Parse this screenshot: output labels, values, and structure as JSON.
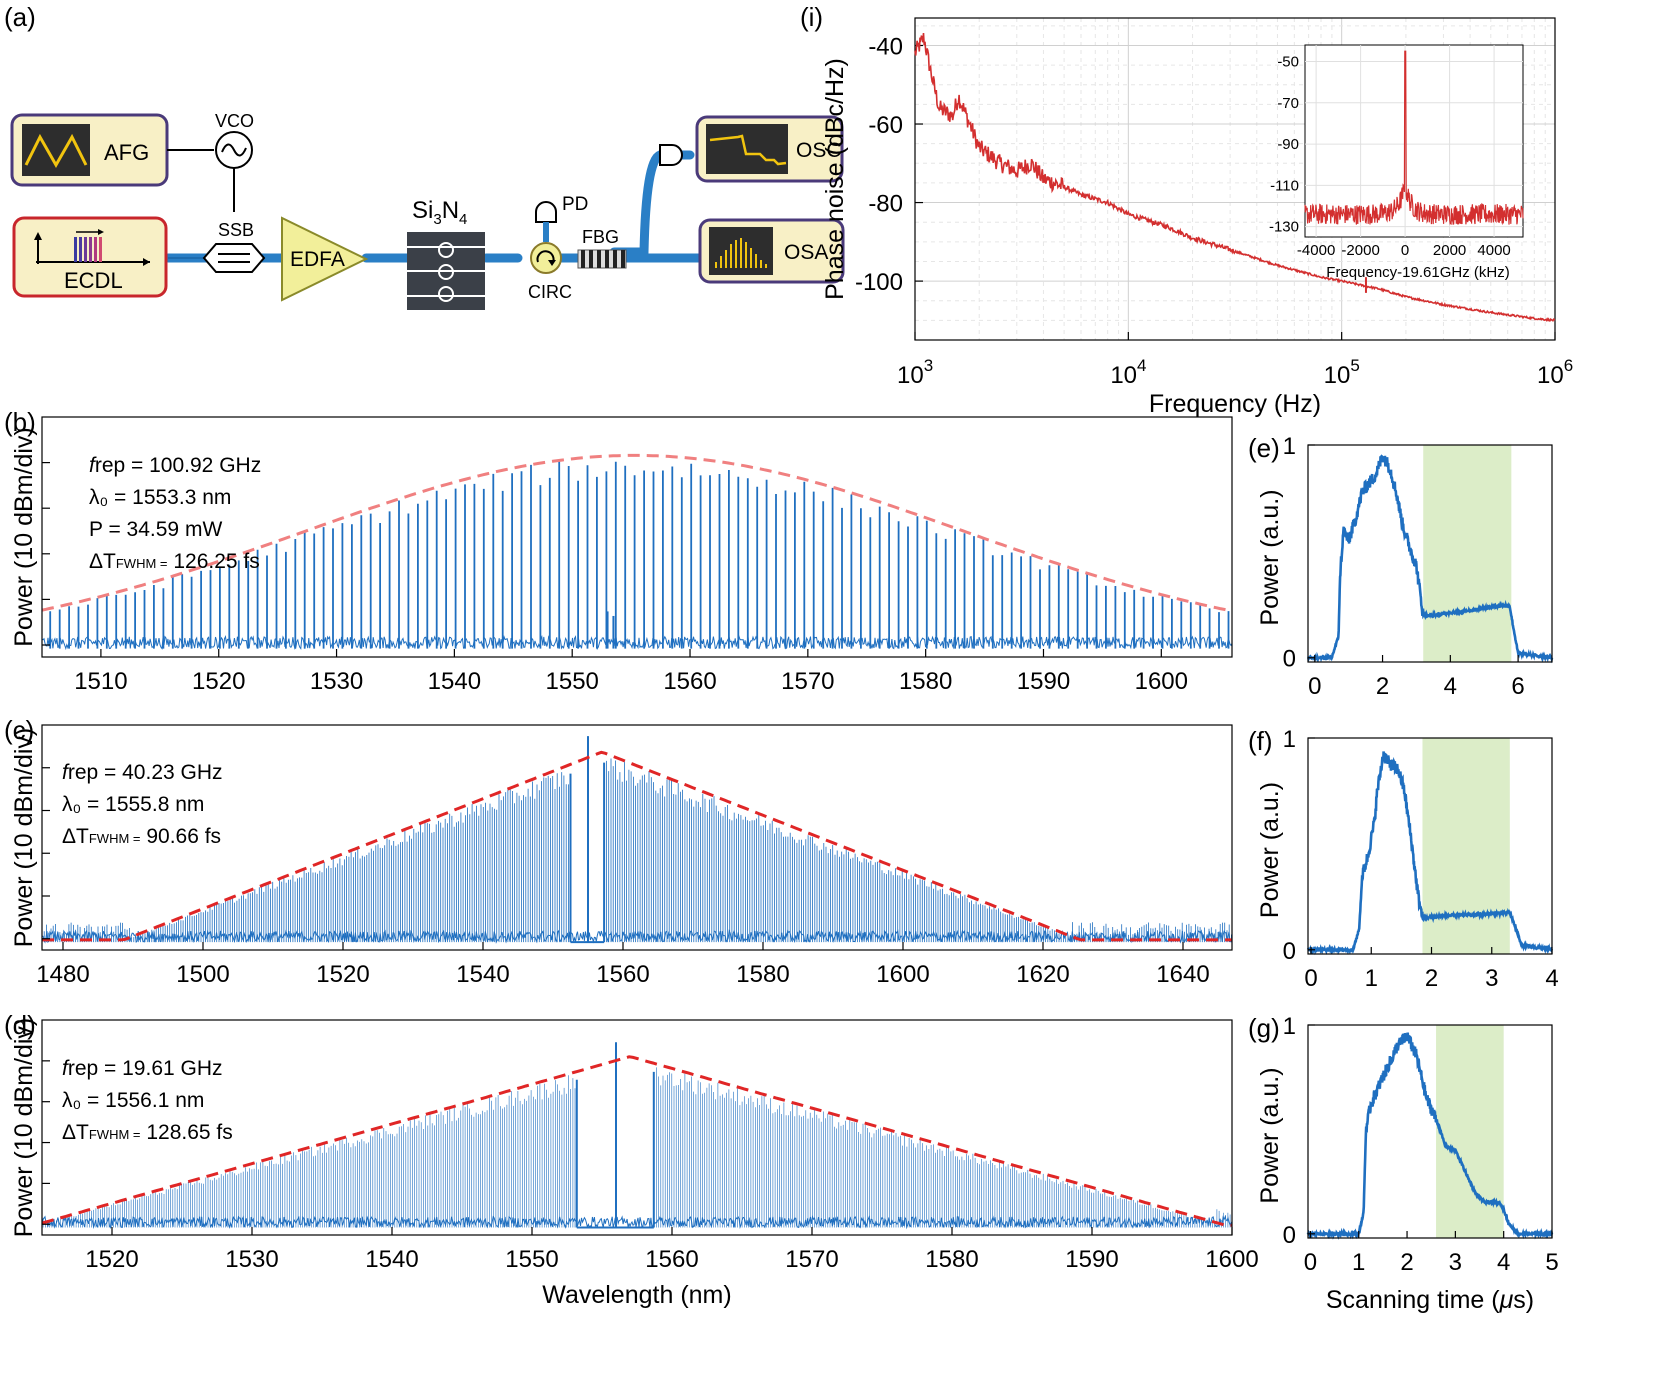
{
  "schematic": {
    "panel_label": "(a)",
    "afg": "AFG",
    "vco": "VCO",
    "ssb": "SSB",
    "ecdl": "ECDL",
    "edfa": "EDFA",
    "chip": "Si",
    "chip_sub1": "3",
    "chip_mid": "N",
    "chip_sub2": "4",
    "pd": "PD",
    "fbg": "FBG",
    "circ": "CIRC",
    "osc": "OSC",
    "osa": "OSA",
    "colors": {
      "box_fill": "#f8f0c6",
      "waveguide": "#2a7fc6",
      "ecdl_border": "#c8262c",
      "box_border": "#4a3a7a",
      "amp_fill": "#f2ef9a"
    }
  },
  "chart_data": [
    {
      "id": "i",
      "panel_label": "(i)",
      "type": "line",
      "xscale": "log",
      "xlim": [
        1000,
        1000000
      ],
      "ylim": [
        -115,
        -33
      ],
      "xticks": [
        1000,
        10000,
        100000,
        1000000
      ],
      "xtick_labels": [
        {
          "base": "10",
          "exp": "3"
        },
        {
          "base": "10",
          "exp": "4"
        },
        {
          "base": "10",
          "exp": "5"
        },
        {
          "base": "10",
          "exp": "6"
        }
      ],
      "yticks": [
        -40,
        -60,
        -80,
        -100
      ],
      "ytick_labels": [
        "-40",
        "-60",
        "-80",
        "-100"
      ],
      "xlabel": "Frequency (Hz)",
      "ylabel": "Phase noise (dBc/Hz)",
      "color": "#d32f2f",
      "grid": true,
      "series": [
        {
          "x": [
            1000,
            1100,
            1200,
            1300,
            1500,
            1600,
            2000,
            2500,
            3000,
            3500,
            4000,
            5000,
            6000,
            8000,
            10000,
            15000,
            20000,
            30000,
            50000,
            80000,
            100000,
            150000,
            200000,
            300000,
            500000,
            800000,
            1000000
          ],
          "y": [
            -42,
            -38,
            -48,
            -56,
            -58,
            -53,
            -66,
            -70,
            -72,
            -70,
            -74,
            -76,
            -78,
            -80,
            -83,
            -86,
            -89,
            -92,
            -96,
            -99,
            -100,
            -102,
            -104,
            -106,
            -108,
            -109.5,
            -110
          ]
        }
      ],
      "inset": {
        "type": "line",
        "xlim": [
          -4500,
          5300
        ],
        "ylim": [
          -135,
          -42
        ],
        "xticks": [
          -4000,
          -2000,
          0,
          2000,
          4000
        ],
        "xtick_labels": [
          "-4000",
          "-2000",
          "0",
          "2000",
          "4000"
        ],
        "yticks": [
          -50,
          -70,
          -90,
          -110,
          -130
        ],
        "ytick_labels": [
          "-50",
          "-70",
          "-90",
          "-110",
          "-130"
        ],
        "xlabel": "Frequency-19.61GHz (kHz)",
        "color": "#d32f2f",
        "peak_center": 0,
        "peak_value": -45,
        "floor": -124
      }
    },
    {
      "id": "b",
      "panel_label": "(b)",
      "type": "line",
      "xlim": [
        1505,
        1606
      ],
      "ylim": [
        0,
        10
      ],
      "xticks": [
        1510,
        1520,
        1530,
        1540,
        1550,
        1560,
        1570,
        1580,
        1590,
        1600
      ],
      "xlabel": "",
      "ylabel": "Power (10 dBm/div)",
      "annotations": [
        {
          "italic": "f",
          "text": "rep = 100.92 GHz"
        },
        {
          "italic": "",
          "text": "λ₀ = 1553.3 nm"
        },
        {
          "italic": "",
          "text": "P = 34.59 mW"
        },
        {
          "italic": "",
          "text": "ΔT",
          "sub": "FWHM =",
          "tail": " 126.25 fs"
        }
      ],
      "spacing_nm": 0.8,
      "center_nm": 1555.3,
      "sigma_nm": 28,
      "peak": 8.4,
      "floor": 0.35,
      "pump_nm": 1553.3,
      "pump_level": 1.9,
      "envelope_color": "#f08080",
      "line_color": "#1f6fc0"
    },
    {
      "id": "c",
      "panel_label": "(c)",
      "type": "line",
      "xlim": [
        1477,
        1647
      ],
      "ylim": [
        0,
        10
      ],
      "xticks": [
        1480,
        1500,
        1520,
        1540,
        1560,
        1580,
        1600,
        1620,
        1640
      ],
      "xlabel": "",
      "ylabel": "Power (10 dBm/div)",
      "annotations": [
        {
          "italic": "f",
          "text": "rep = 40.23 GHz"
        },
        {
          "italic": "",
          "text": "λ₀ = 1555.8 nm"
        },
        {
          "italic": "",
          "text": "ΔT",
          "sub": "FWHM =",
          "tail": " 90.66 fs"
        }
      ],
      "spacing_nm": 0.32,
      "center_nm": 1557,
      "peak": 8.8,
      "floor": 0.35,
      "gap_nm": [
        1552.5,
        1557.3
      ],
      "notch_nm": 1555,
      "triangle_halfwidth_nm": 72,
      "envelope_color": "#e02626",
      "line_color": "#1f6fc0"
    },
    {
      "id": "d",
      "panel_label": "(d)",
      "type": "line",
      "xlim": [
        1515,
        1600
      ],
      "ylim": [
        0,
        10
      ],
      "xticks": [
        1520,
        1530,
        1540,
        1550,
        1560,
        1570,
        1580,
        1590,
        1600
      ],
      "xlabel": "Wavelength (nm)",
      "ylabel": "Power (10 dBm/div)",
      "annotations": [
        {
          "italic": "f",
          "text": "rep =  19.61 GHz"
        },
        {
          "italic": "",
          "text": "λ₀ = 1556.1 nm"
        },
        {
          "italic": "",
          "text": "ΔT",
          "sub": "FWHM =",
          "tail": " 128.65 fs"
        }
      ],
      "spacing_nm": 0.157,
      "center_nm": 1557,
      "peak": 8.3,
      "floor": 0.35,
      "gap_nm": [
        1553.2,
        1558.7
      ],
      "notch_nm": 1556,
      "triangle_halfwidth_nm": 45,
      "envelope_color": "#e02626",
      "line_color": "#1f6fc0"
    },
    {
      "id": "e",
      "panel_label": "(e)",
      "type": "line",
      "xlim": [
        -0.2,
        7
      ],
      "ylim": [
        -0.02,
        1.0
      ],
      "xticks": [
        0,
        2,
        4,
        6
      ],
      "yticks": [
        0,
        1
      ],
      "ylabel": "Power (a.u.)",
      "shade": [
        3.2,
        5.8
      ],
      "shade_color": "#dcedc8",
      "line_color": "#1f6fc0",
      "x": [
        -0.2,
        0.5,
        0.7,
        0.75,
        0.85,
        1.0,
        1.2,
        1.4,
        1.6,
        1.8,
        2.0,
        2.2,
        2.4,
        2.6,
        2.8,
        3.0,
        3.2,
        3.5,
        4.0,
        4.5,
        5.0,
        5.5,
        5.75,
        5.85,
        6.0,
        7.0
      ],
      "y": [
        0.0,
        0.0,
        0.1,
        0.4,
        0.6,
        0.55,
        0.65,
        0.78,
        0.82,
        0.86,
        0.95,
        0.9,
        0.78,
        0.62,
        0.52,
        0.43,
        0.2,
        0.2,
        0.21,
        0.22,
        0.235,
        0.245,
        0.245,
        0.15,
        0.02,
        0.0
      ]
    },
    {
      "id": "f",
      "panel_label": "(f)",
      "type": "line",
      "xlim": [
        -0.05,
        4
      ],
      "ylim": [
        -0.02,
        1.0
      ],
      "xticks": [
        0,
        1,
        2,
        3,
        4
      ],
      "yticks": [
        0,
        1
      ],
      "ylabel": "Power (a.u.)",
      "shade": [
        1.85,
        3.3
      ],
      "shade_color": "#dcedc8",
      "line_color": "#1f6fc0",
      "x": [
        -0.05,
        0.7,
        0.8,
        0.85,
        0.95,
        1.05,
        1.1,
        1.2,
        1.3,
        1.45,
        1.55,
        1.65,
        1.78,
        1.85,
        2.2,
        2.6,
        3.0,
        3.3,
        3.4,
        3.5,
        4.0
      ],
      "y": [
        0.0,
        0.0,
        0.1,
        0.35,
        0.45,
        0.6,
        0.75,
        0.92,
        0.88,
        0.85,
        0.75,
        0.55,
        0.25,
        0.15,
        0.16,
        0.165,
        0.17,
        0.175,
        0.1,
        0.02,
        0.0
      ]
    },
    {
      "id": "g",
      "panel_label": "(g)",
      "type": "line",
      "xlim": [
        -0.05,
        5
      ],
      "ylim": [
        -0.02,
        1.0
      ],
      "xticks": [
        0,
        1,
        2,
        3,
        4,
        5
      ],
      "yticks": [
        0,
        1
      ],
      "xlabel_prefix": "Scanning time (",
      "xlabel_mu": "μ",
      "xlabel_suffix": "s)",
      "ylabel": "Power (a.u.)",
      "shade": [
        2.6,
        4.0
      ],
      "shade_color": "#dcedc8",
      "line_color": "#1f6fc0",
      "x": [
        -0.05,
        1.0,
        1.1,
        1.15,
        1.25,
        1.4,
        1.6,
        1.8,
        2.0,
        2.2,
        2.4,
        2.6,
        2.8,
        3.0,
        3.2,
        3.4,
        3.6,
        3.9,
        4.0,
        4.1,
        4.3,
        5.0
      ],
      "y": [
        0.0,
        0.0,
        0.1,
        0.5,
        0.62,
        0.7,
        0.8,
        0.9,
        0.95,
        0.85,
        0.65,
        0.55,
        0.42,
        0.4,
        0.3,
        0.2,
        0.15,
        0.15,
        0.12,
        0.05,
        0.0,
        0.0
      ]
    }
  ]
}
